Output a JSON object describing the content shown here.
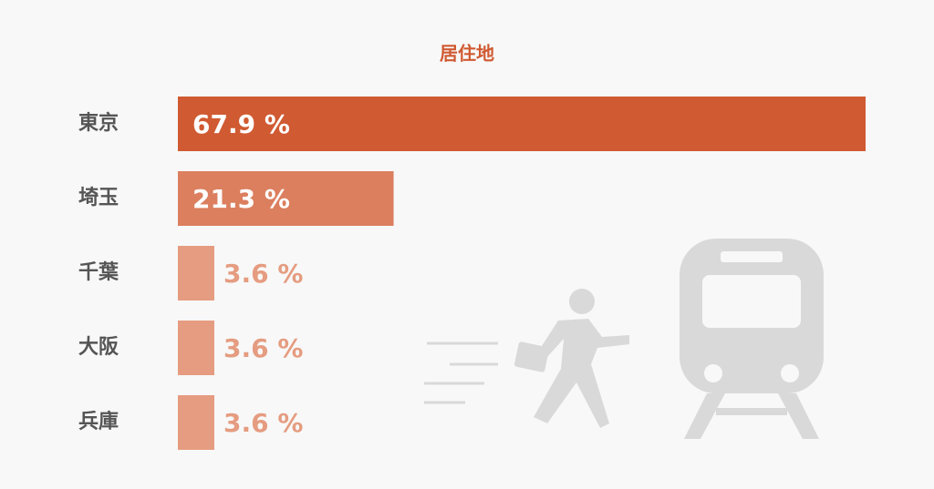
{
  "chart_data": {
    "type": "bar",
    "orientation": "horizontal",
    "title": "居住地",
    "categories": [
      "東京",
      "埼玉",
      "千葉",
      "大阪",
      "兵庫"
    ],
    "values": [
      67.9,
      21.3,
      3.6,
      3.6,
      3.6
    ],
    "value_labels": [
      "67.9 %",
      "21.3 %",
      "3.6 %",
      "3.6 %",
      "3.6 %"
    ],
    "colors": [
      "#d05a32",
      "#db7f5e",
      "#e59c80",
      "#e59c80",
      "#e59c80"
    ]
  }
}
